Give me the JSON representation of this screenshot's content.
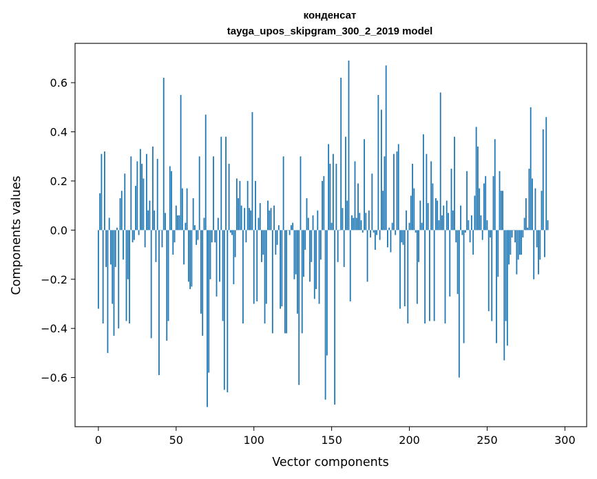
{
  "chart_data": {
    "type": "bar",
    "title": "конденсат",
    "subtitle": "tayga_upos_skipgram_300_2_2019 model",
    "xlabel": "Vector components",
    "ylabel": "Components values",
    "xlim": [
      -15,
      314
    ],
    "ylim": [
      -0.8,
      0.76
    ],
    "xticks": [
      0,
      50,
      100,
      150,
      200,
      250,
      300
    ],
    "yticks": [
      -0.6,
      -0.4,
      -0.2,
      0.0,
      0.2,
      0.4,
      0.6
    ],
    "ytick_labels": [
      "−0.6",
      "−0.4",
      "−0.2",
      "0.0",
      "0.2",
      "0.4",
      "0.6"
    ],
    "bar_color": "#1f77b4",
    "grid": false,
    "values": [
      -0.32,
      0.15,
      0.31,
      -0.38,
      0.32,
      -0.15,
      -0.5,
      0.05,
      -0.14,
      -0.3,
      -0.43,
      -0.15,
      0.01,
      -0.4,
      0.13,
      0.16,
      -0.12,
      0.23,
      -0.37,
      -0.2,
      -0.38,
      0.3,
      -0.05,
      -0.04,
      0.18,
      0.28,
      -0.02,
      0.33,
      0.27,
      0.21,
      -0.07,
      0.31,
      0.08,
      0.12,
      -0.44,
      0.34,
      0.08,
      -0.13,
      0.29,
      -0.59,
      0.0,
      -0.07,
      0.62,
      0.07,
      -0.45,
      -0.37,
      0.26,
      0.24,
      -0.1,
      -0.05,
      0.1,
      0.06,
      0.06,
      0.55,
      0.17,
      -0.14,
      0.03,
      0.17,
      -0.21,
      -0.24,
      -0.23,
      0.13,
      0.02,
      -0.06,
      -0.04,
      0.3,
      -0.34,
      -0.43,
      0.05,
      0.47,
      -0.72,
      -0.58,
      -0.2,
      -0.05,
      0.3,
      -0.05,
      -0.27,
      0.05,
      -0.21,
      0.38,
      -0.37,
      -0.65,
      0.38,
      -0.66,
      0.27,
      -0.01,
      -0.02,
      -0.22,
      -0.11,
      0.21,
      0.13,
      0.2,
      0.1,
      -0.38,
      0.09,
      -0.05,
      0.2,
      0.09,
      0.08,
      0.48,
      -0.3,
      0.2,
      -0.29,
      0.05,
      0.11,
      -0.13,
      -0.1,
      -0.38,
      -0.3,
      0.12,
      0.08,
      0.09,
      -0.42,
      0.1,
      -0.1,
      -0.06,
      0.02,
      -0.32,
      -0.31,
      0.3,
      -0.42,
      -0.42,
      0.0,
      -0.02,
      0.02,
      0.03,
      -0.2,
      -0.18,
      -0.34,
      -0.63,
      0.3,
      -0.42,
      -0.19,
      -0.08,
      0.13,
      0.05,
      -0.21,
      -0.13,
      0.06,
      -0.28,
      -0.24,
      0.08,
      -0.3,
      -0.12,
      0.2,
      0.22,
      -0.69,
      -0.51,
      0.35,
      0.27,
      0.03,
      0.31,
      -0.71,
      0.27,
      -0.13,
      0.0,
      0.62,
      0.09,
      -0.15,
      0.38,
      0.12,
      0.69,
      -0.29,
      0.06,
      0.05,
      0.28,
      0.05,
      0.19,
      0.07,
      0.04,
      -0.01,
      0.37,
      0.07,
      -0.21,
      0.08,
      -0.03,
      0.23,
      -0.01,
      -0.08,
      -0.02,
      0.55,
      -0.04,
      0.49,
      0.16,
      0.3,
      0.67,
      -0.07,
      0.01,
      -0.09,
      0.03,
      0.31,
      -0.02,
      0.32,
      0.35,
      -0.32,
      -0.05,
      -0.06,
      -0.31,
      0.08,
      -0.38,
      0.03,
      0.14,
      0.27,
      0.17,
      -0.01,
      -0.3,
      -0.13,
      0.12,
      0.03,
      0.39,
      -0.38,
      0.31,
      0.11,
      -0.37,
      0.28,
      0.19,
      -0.37,
      0.13,
      0.12,
      0.04,
      0.56,
      0.06,
      0.1,
      -0.38,
      0.12,
      0.07,
      -0.27,
      0.25,
      0.08,
      0.38,
      -0.05,
      -0.26,
      -0.6,
      0.1,
      -0.02,
      -0.46,
      -0.01,
      0.24,
      0.04,
      -0.05,
      0.06,
      -0.1,
      0.14,
      0.42,
      0.34,
      0.17,
      0.06,
      -0.04,
      0.19,
      0.22,
      0.04,
      -0.33,
      -0.03,
      -0.37,
      0.22,
      0.37,
      -0.46,
      -0.19,
      0.24,
      0.16,
      0.16,
      -0.53,
      -0.37,
      -0.47,
      -0.14,
      -0.1,
      -0.03,
      0.0,
      -0.05,
      -0.18,
      -0.12,
      -0.1,
      -0.1,
      -0.03,
      0.05,
      0.13,
      0.01,
      0.25,
      0.5,
      0.21,
      -0.2,
      0.17,
      -0.07,
      -0.18,
      -0.12,
      0.16,
      0.41,
      -0.11,
      0.46,
      0.04
    ]
  }
}
